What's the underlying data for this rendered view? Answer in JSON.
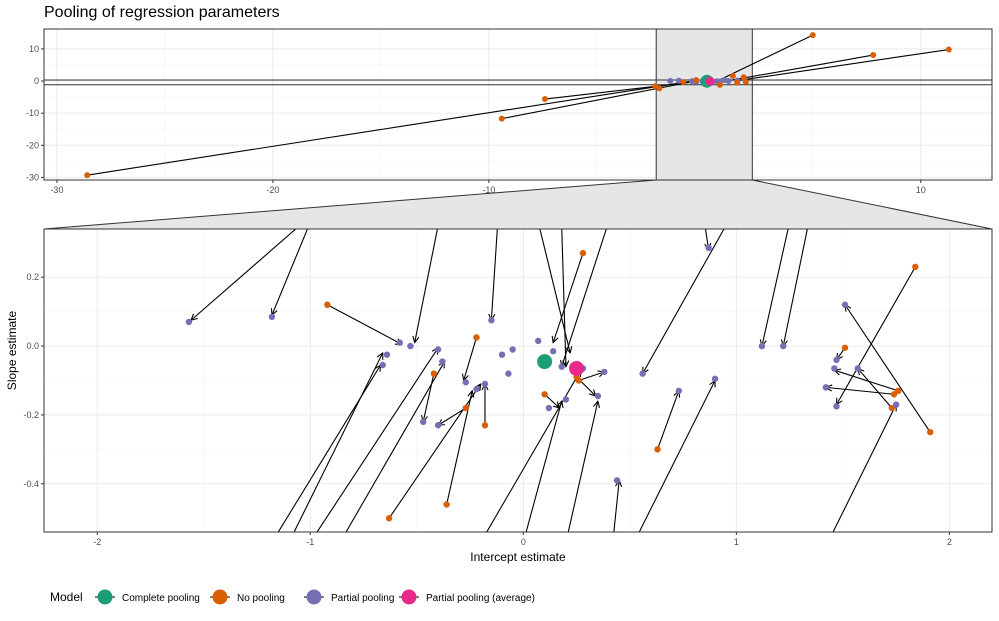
{
  "title": "Pooling of regression parameters",
  "colors": {
    "complete_pooling": "#1b9e77",
    "no_pooling": "#d95f02",
    "partial_pooling": "#7570b3",
    "partial_pooling_average": "#e7298a",
    "panel_border": "#333333",
    "grid_major": "#ebebeb",
    "zoom_fill": "#e6e6e6"
  },
  "chart_data": [
    {
      "type": "scatter",
      "panel": "overview",
      "title": "Pooling of regression parameters",
      "xlim": [
        -30.6,
        13.3
      ],
      "ylim": [
        -30.8,
        16.2
      ],
      "x_ticks": [
        -30,
        -20,
        -10,
        0,
        10
      ],
      "x_tick_labels": [
        "-30",
        "-20",
        "-10",
        "0",
        "10"
      ],
      "y_ticks": [
        -30,
        -20,
        -10,
        0,
        10
      ],
      "y_tick_labels": [
        "-30",
        "-20",
        "-10",
        "0",
        "10"
      ],
      "grid": true,
      "zoom_box": {
        "x": [
          -2.25,
          2.2
        ],
        "y": [
          -0.54,
          0.34
        ]
      },
      "arrows": [
        {
          "from": [
            -28.6,
            -29.3
          ],
          "to": [
            -0.6,
            -0.04
          ]
        },
        {
          "from": [
            -9.4,
            -11.7
          ],
          "to": [
            -0.5,
            -0.1
          ]
        },
        {
          "from": [
            -7.4,
            -5.6
          ],
          "to": [
            -0.3,
            -0.1
          ]
        },
        {
          "from": [
            5.0,
            14.3
          ],
          "to": [
            0.6,
            0.1
          ]
        },
        {
          "from": [
            7.8,
            8.1
          ],
          "to": [
            1.1,
            0.1
          ]
        },
        {
          "from": [
            11.3,
            9.8
          ],
          "to": [
            1.5,
            0.12
          ]
        }
      ],
      "no_pooling_points": [
        [
          -28.6,
          -29.3
        ],
        [
          -9.4,
          -11.7
        ],
        [
          -7.4,
          -5.6
        ],
        [
          5.0,
          14.3
        ],
        [
          7.8,
          8.1
        ],
        [
          11.3,
          9.8
        ],
        [
          -2.3,
          -1.6
        ],
        [
          -2.1,
          -2.3
        ],
        [
          -1.0,
          -0.3
        ],
        [
          1.3,
          1.6
        ],
        [
          1.8,
          1.2
        ],
        [
          1.9,
          -0.25
        ],
        [
          1.5,
          -0.5
        ],
        [
          0.7,
          -1.2
        ],
        [
          -0.4,
          0.3
        ]
      ],
      "partial_pooling_points": [
        [
          -1.6,
          0.07
        ],
        [
          -1.2,
          0.09
        ],
        [
          -0.6,
          -0.04
        ],
        [
          -0.4,
          -0.22
        ],
        [
          -0.1,
          -0.05
        ],
        [
          0.3,
          -0.15
        ],
        [
          0.55,
          -0.08
        ],
        [
          0.7,
          -0.13
        ],
        [
          1.1,
          0.0
        ],
        [
          1.5,
          -0.17
        ],
        [
          1.5,
          0.12
        ],
        [
          0.9,
          0.28
        ]
      ],
      "complete_pooling_point": [
        0.1,
        -0.045
      ],
      "partial_pooling_average_point": [
        0.25,
        -0.06
      ]
    },
    {
      "type": "scatter",
      "panel": "zoom",
      "xlabel": "Intercept estimate",
      "ylabel": "Slope estimate",
      "xlim": [
        -2.25,
        2.2
      ],
      "ylim": [
        -0.54,
        0.34
      ],
      "x_ticks": [
        -2,
        -1,
        0,
        1,
        2
      ],
      "x_tick_labels": [
        "-2",
        "-1",
        "0",
        "1",
        "2"
      ],
      "y_ticks": [
        -0.4,
        -0.2,
        0.0,
        0.2
      ],
      "y_tick_labels": [
        "-0.4",
        "-0.2",
        "0.0",
        "0.2"
      ],
      "grid": true,
      "arrows": [
        {
          "from": [
            -1.05,
            0.35
          ],
          "to": [
            -1.56,
            0.075
          ]
        },
        {
          "from": [
            -1.0,
            0.36
          ],
          "to": [
            -1.18,
            0.09
          ]
        },
        {
          "from": [
            -0.92,
            0.12
          ],
          "to": [
            -0.57,
            0.005
          ]
        },
        {
          "from": [
            -0.4,
            0.35
          ],
          "to": [
            -0.51,
            0.01
          ]
        },
        {
          "from": [
            -1.1,
            -0.57
          ],
          "to": [
            -0.66,
            -0.02
          ]
        },
        {
          "from": [
            -1.18,
            -0.57
          ],
          "to": [
            -0.67,
            -0.055
          ]
        },
        {
          "from": [
            -1.0,
            -0.57
          ],
          "to": [
            -0.4,
            -0.005
          ]
        },
        {
          "from": [
            -0.86,
            -0.57
          ],
          "to": [
            -0.37,
            -0.045
          ]
        },
        {
          "from": [
            -0.42,
            -0.08
          ],
          "to": [
            -0.47,
            -0.22
          ]
        },
        {
          "from": [
            -0.22,
            0.025
          ],
          "to": [
            -0.28,
            -0.1
          ]
        },
        {
          "from": [
            -0.27,
            -0.18
          ],
          "to": [
            -0.4,
            -0.23
          ]
        },
        {
          "from": [
            -0.63,
            -0.5
          ],
          "to": [
            -0.2,
            -0.11
          ]
        },
        {
          "from": [
            -0.18,
            -0.23
          ],
          "to": [
            -0.18,
            -0.11
          ]
        },
        {
          "from": [
            -0.36,
            -0.46
          ],
          "to": [
            -0.24,
            -0.13
          ]
        },
        {
          "from": [
            -0.12,
            0.36
          ],
          "to": [
            -0.15,
            0.075
          ]
        },
        {
          "from": [
            0.1,
            -0.14
          ],
          "to": [
            0.17,
            -0.18
          ]
        },
        {
          "from": [
            0.28,
            0.27
          ],
          "to": [
            0.14,
            0.01
          ]
        },
        {
          "from": [
            0.18,
            0.35
          ],
          "to": [
            0.2,
            -0.06
          ]
        },
        {
          "from": [
            0.26,
            -0.1
          ],
          "to": [
            0.38,
            -0.075
          ]
        },
        {
          "from": [
            0.25,
            -0.09
          ],
          "to": [
            0.34,
            -0.145
          ]
        },
        {
          "from": [
            0.07,
            0.36
          ],
          "to": [
            0.22,
            -0.02
          ]
        },
        {
          "from": [
            0.4,
            0.36
          ],
          "to": [
            0.18,
            -0.06
          ]
        },
        {
          "from": [
            -0.2,
            -0.57
          ],
          "to": [
            0.27,
            -0.07
          ]
        },
        {
          "from": [
            0.2,
            -0.57
          ],
          "to": [
            0.35,
            -0.16
          ]
        },
        {
          "from": [
            0.0,
            -0.57
          ],
          "to": [
            0.18,
            -0.16
          ]
        },
        {
          "from": [
            0.96,
            0.36
          ],
          "to": [
            0.56,
            -0.08
          ]
        },
        {
          "from": [
            0.63,
            -0.3
          ],
          "to": [
            0.73,
            -0.13
          ]
        },
        {
          "from": [
            0.52,
            -0.57
          ],
          "to": [
            0.9,
            -0.1
          ]
        },
        {
          "from": [
            0.42,
            -0.57
          ],
          "to": [
            0.45,
            -0.39
          ]
        },
        {
          "from": [
            0.85,
            0.36
          ],
          "to": [
            0.87,
            0.28
          ]
        },
        {
          "from": [
            1.25,
            0.36
          ],
          "to": [
            1.12,
            0.0
          ]
        },
        {
          "from": [
            1.34,
            0.36
          ],
          "to": [
            1.22,
            0.0
          ]
        },
        {
          "from": [
            1.84,
            0.23
          ],
          "to": [
            1.47,
            -0.17
          ]
        },
        {
          "from": [
            1.51,
            -0.005
          ],
          "to": [
            1.47,
            -0.04
          ]
        },
        {
          "from": [
            1.91,
            -0.25
          ],
          "to": [
            1.51,
            0.12
          ]
        },
        {
          "from": [
            1.74,
            -0.14
          ],
          "to": [
            1.42,
            -0.12
          ]
        },
        {
          "from": [
            1.76,
            -0.13
          ],
          "to": [
            1.46,
            -0.07
          ]
        },
        {
          "from": [
            1.73,
            -0.18
          ],
          "to": [
            1.57,
            -0.065
          ]
        },
        {
          "from": [
            1.43,
            -0.57
          ],
          "to": [
            1.75,
            -0.17
          ]
        }
      ],
      "no_pooling_points": [
        [
          -0.92,
          0.12
        ],
        [
          -0.42,
          -0.08
        ],
        [
          -0.22,
          0.025
        ],
        [
          -0.27,
          -0.18
        ],
        [
          -0.63,
          -0.5
        ],
        [
          -0.18,
          -0.23
        ],
        [
          -0.36,
          -0.46
        ],
        [
          0.1,
          -0.14
        ],
        [
          0.28,
          0.27
        ],
        [
          0.26,
          -0.1
        ],
        [
          0.25,
          -0.09
        ],
        [
          0.63,
          -0.3
        ],
        [
          1.84,
          0.23
        ],
        [
          1.51,
          -0.005
        ],
        [
          1.91,
          -0.25
        ],
        [
          1.74,
          -0.14
        ],
        [
          1.76,
          -0.13
        ],
        [
          1.73,
          -0.18
        ]
      ],
      "partial_pooling_points": [
        [
          -1.57,
          0.07
        ],
        [
          -1.18,
          0.085
        ],
        [
          -0.58,
          0.01
        ],
        [
          -0.53,
          0.0
        ],
        [
          -0.64,
          -0.025
        ],
        [
          -0.66,
          -0.055
        ],
        [
          -0.4,
          -0.01
        ],
        [
          -0.38,
          -0.045
        ],
        [
          -0.47,
          -0.22
        ],
        [
          -0.4,
          -0.23
        ],
        [
          -0.27,
          -0.105
        ],
        [
          -0.22,
          -0.125
        ],
        [
          -0.18,
          -0.11
        ],
        [
          -0.15,
          0.075
        ],
        [
          -0.1,
          -0.025
        ],
        [
          -0.05,
          -0.01
        ],
        [
          -0.07,
          -0.08
        ],
        [
          0.07,
          0.015
        ],
        [
          0.12,
          -0.18
        ],
        [
          0.14,
          -0.015
        ],
        [
          0.18,
          -0.06
        ],
        [
          0.2,
          -0.155
        ],
        [
          0.28,
          -0.065
        ],
        [
          0.35,
          -0.145
        ],
        [
          0.38,
          -0.075
        ],
        [
          0.44,
          -0.39
        ],
        [
          0.56,
          -0.08
        ],
        [
          0.73,
          -0.13
        ],
        [
          0.9,
          -0.095
        ],
        [
          0.87,
          0.285
        ],
        [
          1.12,
          0.0
        ],
        [
          1.22,
          0.0
        ],
        [
          1.51,
          0.12
        ],
        [
          1.47,
          -0.04
        ],
        [
          1.46,
          -0.065
        ],
        [
          1.42,
          -0.12
        ],
        [
          1.47,
          -0.175
        ],
        [
          1.57,
          -0.065
        ],
        [
          1.75,
          -0.17
        ]
      ],
      "complete_pooling_point": [
        0.1,
        -0.045
      ],
      "partial_pooling_average_point": [
        0.25,
        -0.065
      ]
    }
  ],
  "legend": {
    "title": "Model",
    "position": "bottom-left",
    "items": [
      {
        "label": "Complete pooling",
        "color": "#1b9e77"
      },
      {
        "label": "No pooling",
        "color": "#d95f02"
      },
      {
        "label": "Partial pooling",
        "color": "#7570b3"
      },
      {
        "label": "Partial pooling (average)",
        "color": "#e7298a"
      }
    ]
  }
}
